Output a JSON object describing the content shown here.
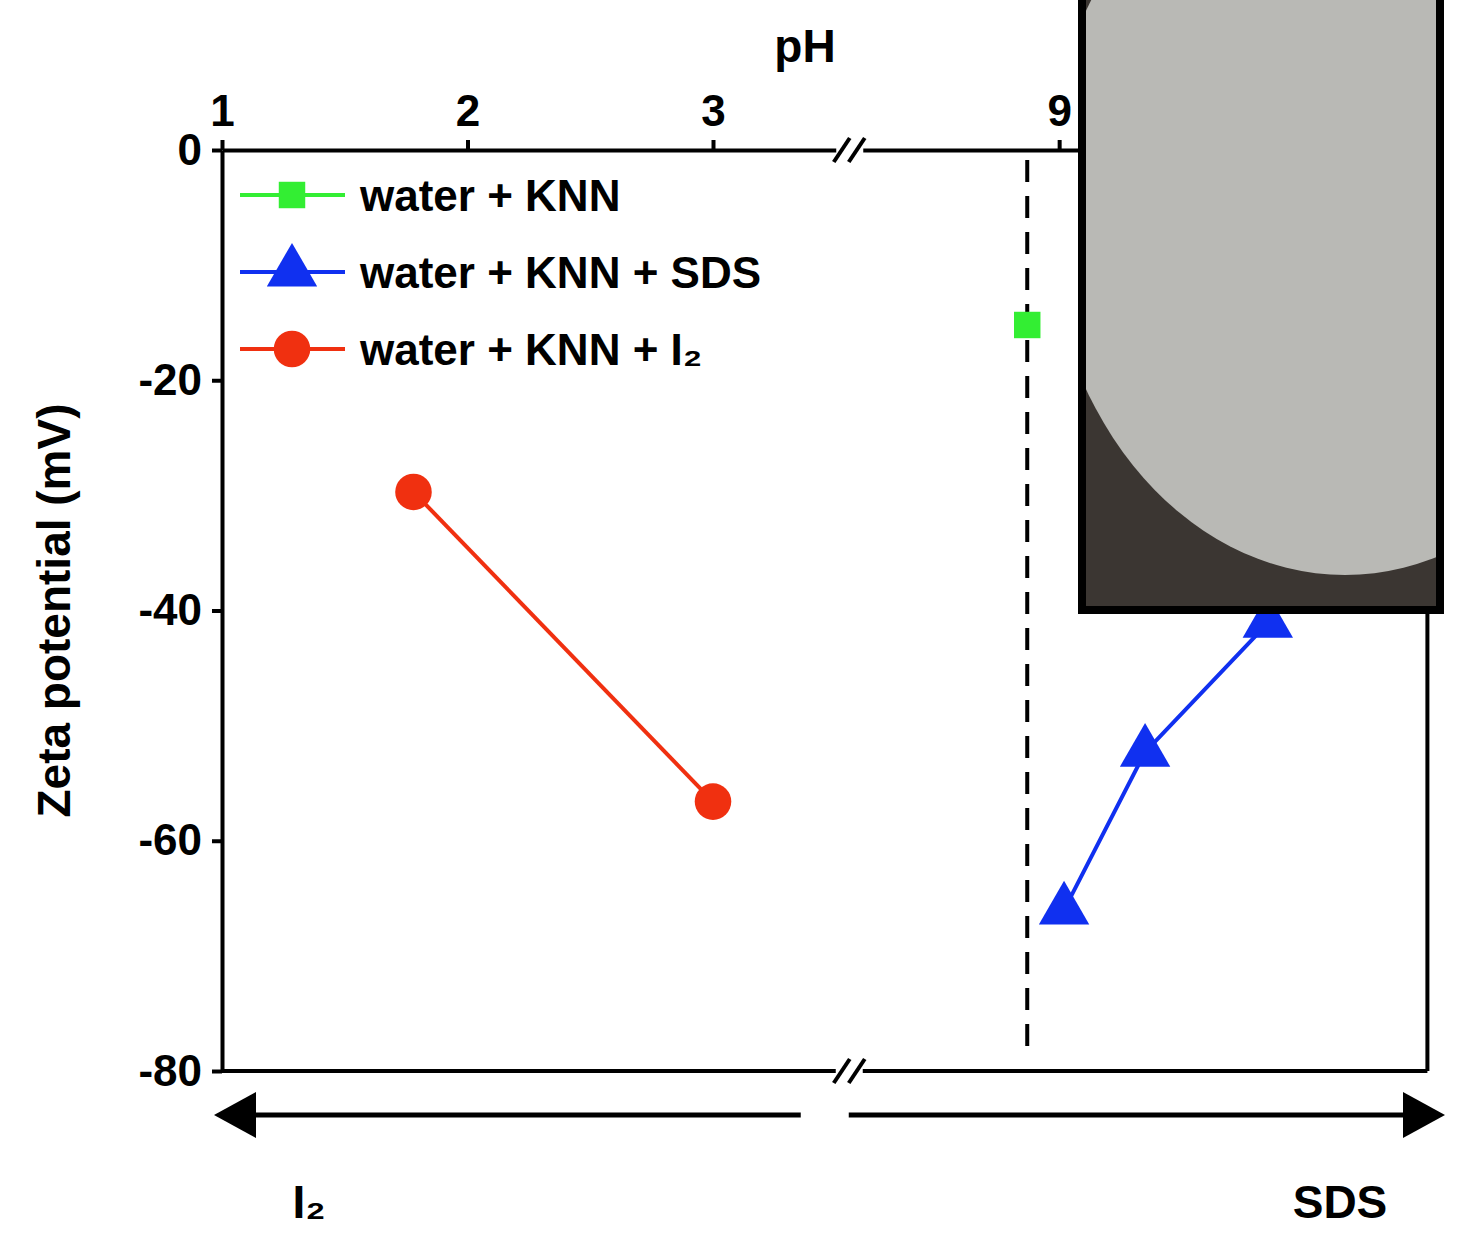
{
  "chart_data": {
    "type": "line",
    "x_label": "pH",
    "y_label": "Zeta potential (mV)",
    "xlim": [
      [
        1,
        3.5
      ],
      [
        8.2,
        10.5
      ]
    ],
    "xticks": [
      1,
      2,
      3,
      9
    ],
    "ylim": [
      -80,
      0
    ],
    "yticks": [
      -80,
      -60,
      -40,
      -20,
      0
    ],
    "legend": "upper left",
    "series": [
      {
        "name": "water + KNN",
        "color": "#33ee33",
        "marker": "square",
        "x": [
          8.87
        ],
        "values": [
          -15.2
        ]
      },
      {
        "name": "water + KNN + SDS",
        "color": "#1030f0",
        "marker": "triangle",
        "x": [
          9.02,
          9.35,
          9.85
        ],
        "values": [
          -66,
          -52.3,
          -41.1
        ]
      },
      {
        "name": "water + KNN + I₂",
        "color": "#f03010",
        "marker": "circle",
        "x": [
          1.78,
          3.0
        ],
        "values": [
          -29.7,
          -56.6
        ]
      }
    ],
    "reference_lines": [
      {
        "x": 8.87,
        "line_style": "dashed"
      }
    ],
    "annotations": [
      {
        "text": "I₂"
      },
      {
        "text": "SDS"
      }
    ]
  }
}
